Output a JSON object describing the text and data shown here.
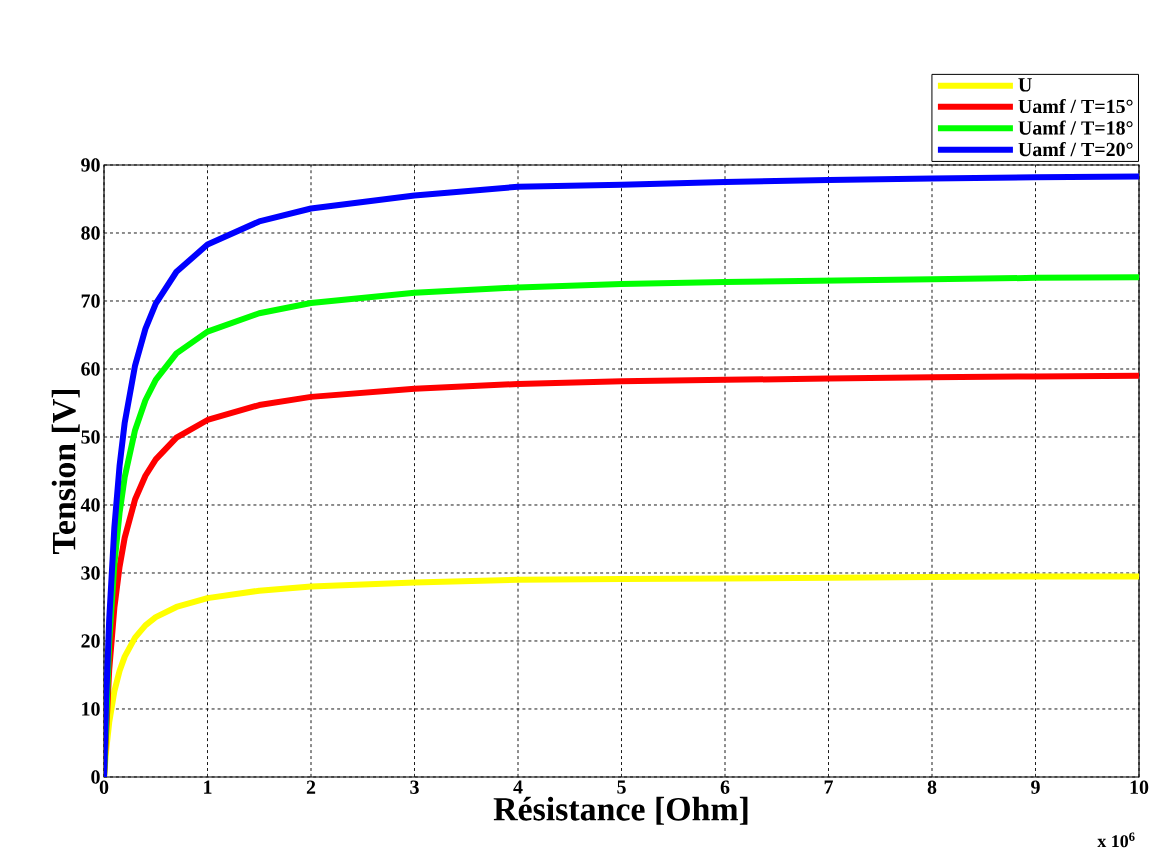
{
  "chart_data": {
    "type": "line",
    "xlabel": "Résistance [Ohm]",
    "ylabel": "Tension [V]",
    "x": [
      0,
      0.02,
      0.05,
      0.1,
      0.15,
      0.2,
      0.3,
      0.4,
      0.5,
      0.7,
      1,
      1.5,
      2,
      3,
      4,
      5,
      6,
      7,
      8,
      9,
      10
    ],
    "series": [
      {
        "name": "U",
        "color": "#ffff00",
        "values": [
          0,
          3.8,
          8.0,
          12.6,
          15.6,
          17.7,
          20.5,
          22.3,
          23.5,
          25.0,
          26.3,
          27.4,
          28.0,
          28.6,
          29.0,
          29.1,
          29.2,
          29.3,
          29.4,
          29.5,
          29.5
        ]
      },
      {
        "name": "Uamf / T=15°",
        "color": "#ff0000",
        "values": [
          0,
          null,
          15.7,
          24.9,
          30.9,
          35.2,
          40.8,
          44.3,
          46.7,
          49.9,
          52.5,
          54.7,
          55.9,
          57.1,
          57.8,
          58.2,
          58.4,
          58.6,
          58.8,
          58.9,
          59.0
        ]
      },
      {
        "name": "Uamf / T=18°",
        "color": "#00ff00",
        "values": [
          0,
          null,
          19.8,
          31.3,
          38.8,
          44.1,
          51.0,
          55.4,
          58.4,
          62.3,
          65.5,
          68.2,
          69.7,
          71.2,
          72.0,
          72.5,
          72.8,
          73.0,
          73.2,
          73.4,
          73.5
        ]
      },
      {
        "name": "Uamf / T=20°",
        "color": "#0000ff",
        "values": [
          0,
          10.9,
          23.1,
          36.7,
          45.7,
          52.1,
          60.5,
          65.9,
          69.6,
          74.3,
          78.3,
          81.7,
          83.6,
          85.5,
          86.8,
          87.1,
          87.5,
          87.8,
          88.0,
          88.2,
          88.3
        ]
      }
    ],
    "xlim": [
      0,
      10
    ],
    "ylim": [
      0,
      90
    ],
    "xticks": [
      0,
      1,
      2,
      3,
      4,
      5,
      6,
      7,
      8,
      9,
      10
    ],
    "yticks": [
      0,
      10,
      20,
      30,
      40,
      50,
      60,
      70,
      80,
      90
    ],
    "grid": true,
    "legend": "top right",
    "marker": "none",
    "line_style": "solid",
    "annotations": [
      "x 10$^{6}$"
    ]
  }
}
